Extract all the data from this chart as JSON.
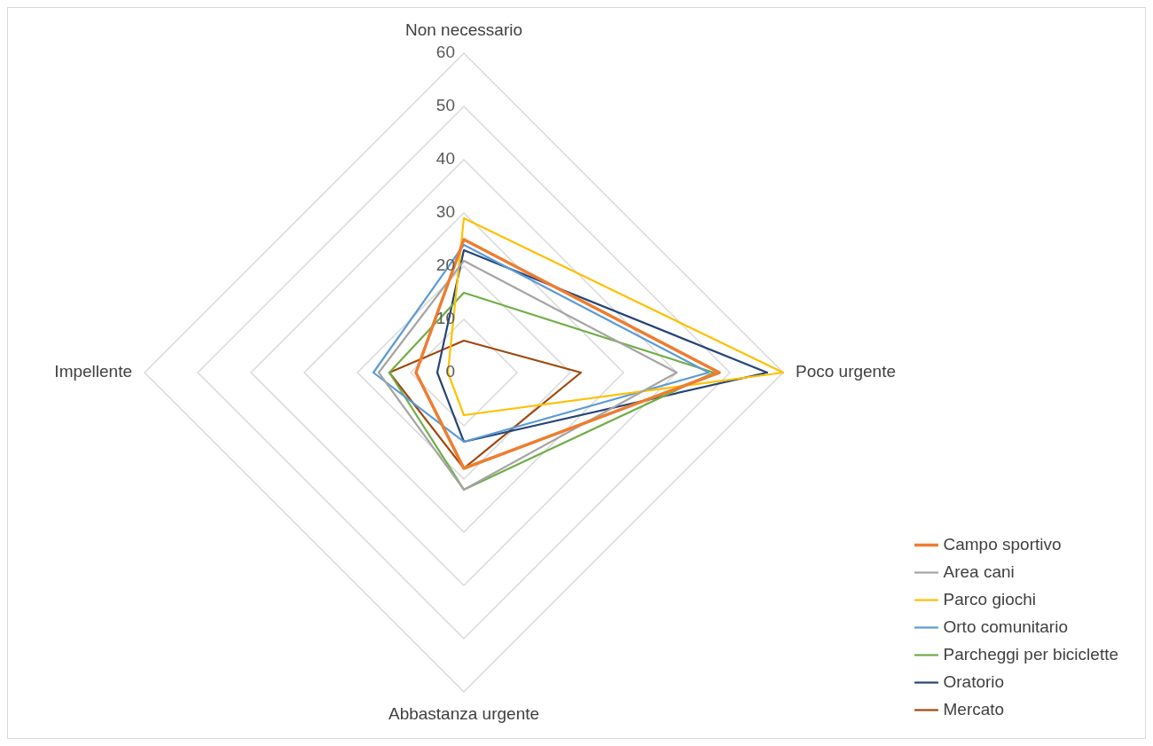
{
  "chart_data": {
    "type": "radar",
    "categories": [
      "Non necessario",
      "Poco urgente",
      "Abbastanza urgente",
      "Impellente"
    ],
    "ylim": [
      0,
      60
    ],
    "yticks": [
      0,
      10,
      20,
      30,
      40,
      50,
      60
    ],
    "grid": true,
    "legend": "bottom right",
    "marker": "none",
    "series": [
      {
        "name": "Campo sportivo",
        "color": "#ed7d31",
        "values": [
          25,
          48,
          18,
          9
        ]
      },
      {
        "name": "Area cani",
        "color": "#a5a5a5",
        "values": [
          21,
          40,
          22,
          16
        ]
      },
      {
        "name": "Parco giochi",
        "color": "#ffc000",
        "values": [
          29,
          60,
          8,
          3
        ]
      },
      {
        "name": "Orto comunitario",
        "color": "#5b9bd5",
        "values": [
          24,
          46,
          13,
          17
        ]
      },
      {
        "name": "Parcheggi per biciclette",
        "color": "#70ad47",
        "values": [
          15,
          47,
          22,
          14
        ]
      },
      {
        "name": "Oratorio",
        "color": "#264478",
        "values": [
          23,
          57,
          13,
          5
        ]
      },
      {
        "name": "Mercato",
        "color": "#9e480e",
        "values": [
          6,
          22,
          18,
          14
        ]
      }
    ]
  }
}
